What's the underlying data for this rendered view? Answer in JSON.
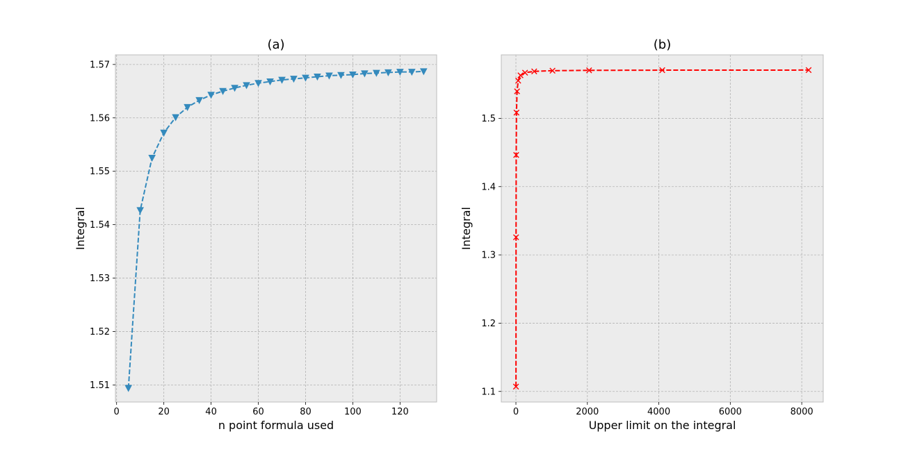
{
  "chart_data": [
    {
      "type": "line",
      "title": "(a)",
      "xlabel": "n point formula used",
      "ylabel": "Integral",
      "xlim": [
        -0.5,
        135.5
      ],
      "ylim": [
        1.5068,
        1.5718
      ],
      "xticks": [
        0,
        20,
        40,
        60,
        80,
        100,
        120
      ],
      "yticks": [
        1.51,
        1.52,
        1.53,
        1.54,
        1.55,
        1.56,
        1.57
      ],
      "ytick_labels": [
        "1.51",
        "1.52",
        "1.53",
        "1.54",
        "1.55",
        "1.56",
        "1.57"
      ],
      "grid": true,
      "series": [
        {
          "color": "#348abd",
          "linestyle": "dashed",
          "marker": "triangle-down",
          "x": [
            5,
            10,
            15,
            20,
            25,
            30,
            35,
            40,
            45,
            50,
            55,
            60,
            65,
            70,
            75,
            80,
            85,
            90,
            95,
            100,
            105,
            110,
            115,
            120,
            125,
            130
          ],
          "y": [
            1.5094,
            1.5427,
            1.5525,
            1.5572,
            1.5601,
            1.562,
            1.5633,
            1.5643,
            1.565,
            1.5656,
            1.5661,
            1.5665,
            1.5668,
            1.5671,
            1.5673,
            1.5675,
            1.5677,
            1.5679,
            1.568,
            1.5681,
            1.5683,
            1.5684,
            1.5685,
            1.5686,
            1.5686,
            1.5687
          ]
        }
      ]
    },
    {
      "type": "line",
      "title": "(b)",
      "xlabel": "Upper limit on the integral",
      "ylabel": "Integral",
      "xlim": [
        -409,
        8601
      ],
      "ylim": [
        1.0845,
        1.593
      ],
      "xticks": [
        0,
        2000,
        4000,
        6000,
        8000
      ],
      "yticks": [
        1.1,
        1.2,
        1.3,
        1.4,
        1.5
      ],
      "ytick_labels": [
        "1.1",
        "1.2",
        "1.3",
        "1.4",
        "1.5"
      ],
      "grid": true,
      "series": [
        {
          "color": "#ff0000",
          "linestyle": "dashed",
          "marker": "x",
          "x": [
            2,
            4,
            8,
            16,
            32,
            64,
            128,
            256,
            512,
            1024,
            2048,
            4096,
            8192
          ],
          "y": [
            1.1071,
            1.3258,
            1.4464,
            1.5084,
            1.5396,
            1.5552,
            1.563,
            1.5669,
            1.5688,
            1.5698,
            1.5703,
            1.5706,
            1.5707
          ]
        }
      ]
    }
  ]
}
